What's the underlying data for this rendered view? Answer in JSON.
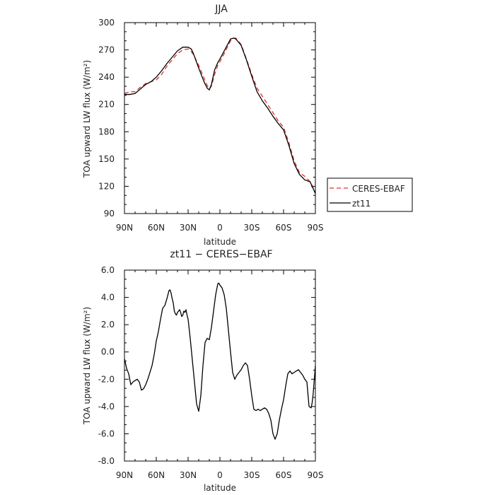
{
  "chart_data": [
    {
      "type": "line",
      "title": "JJA",
      "xlabel": "",
      "ylabel": "TOA upward LW flux (W/m²)",
      "xlim": [
        90,
        -90
      ],
      "ylim": [
        90,
        300
      ],
      "x_ticks": [
        {
          "value": 90,
          "label": "90N"
        },
        {
          "value": 60,
          "label": "60N"
        },
        {
          "value": 30,
          "label": "30N"
        },
        {
          "value": 0,
          "label": "0"
        },
        {
          "value": -30,
          "label": "30S"
        },
        {
          "value": -60,
          "label": "60S"
        },
        {
          "value": -90,
          "label": "90S"
        }
      ],
      "y_ticks": [
        90,
        120,
        150,
        180,
        210,
        240,
        270,
        300
      ],
      "legend_position": "right",
      "series": [
        {
          "name": "CERES-EBAF",
          "color": "#e03030",
          "dash": "dashed",
          "x": [
            90,
            85,
            80,
            75,
            70,
            65,
            60,
            55,
            50,
            45,
            40,
            35,
            30,
            27,
            25,
            20,
            15,
            12,
            10,
            8,
            5,
            2,
            0,
            -5,
            -10,
            -13,
            -15,
            -20,
            -25,
            -30,
            -35,
            -40,
            -45,
            -50,
            -55,
            -60,
            -65,
            -70,
            -75,
            -80,
            -85,
            -90
          ],
          "y": [
            222,
            224,
            224,
            229,
            233,
            235,
            237,
            243,
            252,
            259,
            266,
            270,
            271,
            268,
            265,
            253,
            239,
            231,
            227,
            230,
            243,
            253,
            257,
            268,
            280,
            283,
            283,
            276,
            260,
            243,
            228,
            219,
            210,
            201,
            192,
            185,
            168,
            148,
            135,
            131,
            125,
            114
          ]
        },
        {
          "name": "zt11",
          "color": "#000000",
          "dash": "solid",
          "x": [
            90,
            85,
            80,
            75,
            70,
            65,
            60,
            55,
            50,
            45,
            40,
            35,
            30,
            27,
            25,
            20,
            15,
            12,
            10,
            8,
            5,
            2,
            0,
            -5,
            -10,
            -13,
            -15,
            -20,
            -25,
            -30,
            -35,
            -40,
            -45,
            -50,
            -55,
            -60,
            -65,
            -70,
            -75,
            -80,
            -85,
            -90
          ],
          "y": [
            221,
            221,
            222,
            227,
            232,
            235,
            240,
            247,
            255,
            262,
            269,
            273,
            273,
            271,
            266,
            250,
            235,
            228,
            226,
            232,
            248,
            256,
            260,
            271,
            282,
            283,
            282,
            275,
            259,
            241,
            224,
            214,
            206,
            197,
            189,
            182,
            165,
            145,
            133,
            127,
            125,
            112
          ]
        }
      ]
    },
    {
      "type": "line",
      "title": "zt11 − CERES−EBAF",
      "xlabel": "latitude",
      "ylabel": "TOA upward LW flux (W/m²)",
      "xlim": [
        90,
        -90
      ],
      "ylim": [
        -8.0,
        6.0
      ],
      "x_ticks": [
        {
          "value": 90,
          "label": "90N"
        },
        {
          "value": 60,
          "label": "60N"
        },
        {
          "value": 30,
          "label": "30N"
        },
        {
          "value": 0,
          "label": "0"
        },
        {
          "value": -30,
          "label": "30S"
        },
        {
          "value": -60,
          "label": "60S"
        },
        {
          "value": -90,
          "label": "90S"
        }
      ],
      "y_ticks": [
        -8.0,
        -6.0,
        -4.0,
        -2.0,
        0.0,
        2.0,
        4.0,
        6.0
      ],
      "series": [
        {
          "name": "",
          "color": "#000000",
          "dash": "solid",
          "x": [
            90,
            88,
            86,
            84,
            82,
            80,
            78,
            76,
            74,
            72,
            70,
            68,
            66,
            64,
            62,
            60,
            58,
            56,
            54,
            52,
            50,
            48,
            47,
            46,
            45,
            44,
            43,
            42,
            41,
            40,
            39,
            38,
            37,
            36,
            35,
            34,
            33,
            32,
            31,
            30,
            28,
            26,
            24,
            22,
            20,
            18,
            16,
            14,
            12,
            10,
            8,
            6,
            4,
            2,
            1,
            0,
            -2,
            -4,
            -6,
            -8,
            -10,
            -12,
            -14,
            -16,
            -18,
            -20,
            -22,
            -24,
            -26,
            -28,
            -30,
            -32,
            -34,
            -36,
            -38,
            -40,
            -42,
            -44,
            -46,
            -48,
            -50,
            -52,
            -54,
            -56,
            -58,
            -60,
            -62,
            -64,
            -66,
            -68,
            -70,
            -72,
            -74,
            -76,
            -78,
            -80,
            -82,
            -84,
            -86,
            -87,
            -88,
            -89,
            -90
          ],
          "y": [
            -0.5,
            -1.2,
            -1.6,
            -2.4,
            -2.2,
            -2.1,
            -2.0,
            -2.2,
            -2.8,
            -2.7,
            -2.4,
            -2.0,
            -1.5,
            -1.0,
            -0.2,
            0.8,
            1.5,
            2.4,
            3.2,
            3.4,
            3.9,
            4.5,
            4.55,
            4.3,
            3.9,
            3.6,
            3.0,
            2.8,
            2.7,
            2.9,
            3.0,
            3.1,
            2.9,
            2.6,
            2.7,
            3.0,
            2.9,
            3.1,
            2.7,
            2.4,
            1.0,
            -0.6,
            -2.2,
            -3.8,
            -4.35,
            -3.2,
            -1.0,
            0.7,
            1.0,
            0.9,
            1.8,
            3.0,
            4.2,
            5.0,
            5.05,
            4.9,
            4.7,
            4.2,
            3.2,
            1.6,
            0.0,
            -1.5,
            -2.0,
            -1.7,
            -1.5,
            -1.3,
            -1.0,
            -0.8,
            -1.0,
            -2.0,
            -3.2,
            -4.2,
            -4.3,
            -4.2,
            -4.3,
            -4.2,
            -4.1,
            -4.2,
            -4.5,
            -5.0,
            -6.0,
            -6.4,
            -6.0,
            -5.0,
            -4.2,
            -3.5,
            -2.5,
            -1.6,
            -1.4,
            -1.6,
            -1.5,
            -1.4,
            -1.3,
            -1.5,
            -1.7,
            -2.0,
            -2.2,
            -4.0,
            -4.1,
            -3.7,
            -3.0,
            -2.0,
            -1.0
          ]
        }
      ]
    }
  ],
  "legend": {
    "entries": [
      {
        "label": "CERES-EBAF"
      },
      {
        "label": "zt11"
      }
    ]
  }
}
